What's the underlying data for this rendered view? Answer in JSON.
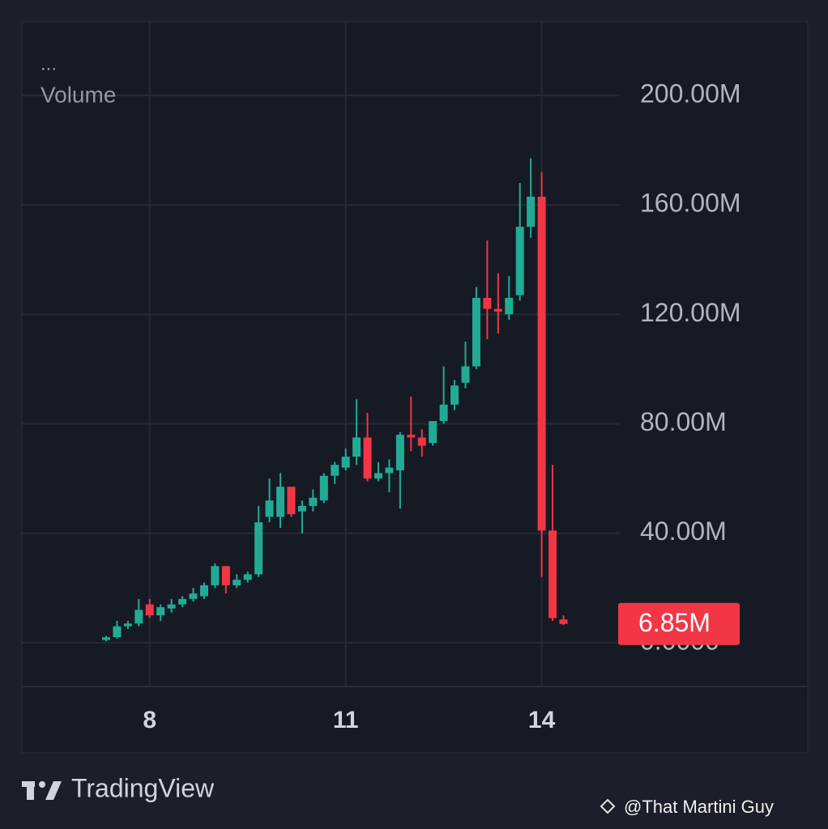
{
  "chart_data": {
    "type": "candlestick",
    "menu": "...",
    "indicator_label": "Volume",
    "brand": "TradingView",
    "watermark": "@That Martini Guy",
    "categories": [
      null,
      null,
      null,
      null,
      "8",
      null,
      null,
      null,
      null,
      null,
      null,
      null,
      null,
      null,
      null,
      null,
      null,
      null,
      null,
      null,
      null,
      null,
      "11",
      null,
      null,
      null,
      null,
      null,
      null,
      null,
      null,
      null,
      null,
      null,
      null,
      null,
      null,
      null,
      null,
      null,
      "14",
      null,
      null
    ],
    "series": [
      {
        "up_color": "#22ab94",
        "down_color": "#f23645",
        "open": [
          1,
          2,
          6,
          7,
          14,
          10,
          12.5,
          14,
          16,
          17,
          21,
          28,
          21,
          23,
          25,
          46,
          46,
          57,
          48,
          50,
          52,
          61,
          64,
          68,
          75,
          60,
          62,
          63,
          76,
          75,
          73,
          81,
          87,
          95,
          101,
          126,
          122,
          120,
          127,
          152,
          163,
          41,
          8.5
        ],
        "high": [
          2.5,
          8,
          8,
          16,
          16,
          14,
          16,
          17,
          20,
          22,
          29,
          28,
          25,
          26,
          50,
          60,
          62,
          57,
          52,
          56,
          62,
          66,
          71,
          89,
          84,
          66,
          67,
          77,
          90,
          78,
          81,
          101,
          96,
          110,
          130,
          147,
          135,
          134,
          168,
          177,
          172,
          65,
          10
        ],
        "low": [
          0.5,
          1.5,
          5,
          6,
          9,
          8,
          11,
          13,
          15,
          16,
          20,
          18,
          20,
          22,
          24,
          44,
          42,
          46,
          40,
          48,
          51,
          58,
          63,
          65,
          59,
          59,
          55,
          49,
          70,
          68,
          72,
          80,
          85,
          93,
          100,
          111,
          113,
          118,
          125,
          148,
          24,
          8,
          6.5
        ],
        "close": [
          2,
          6,
          7,
          12,
          10,
          13,
          14,
          16,
          18,
          21,
          28,
          21,
          23,
          25,
          44,
          52,
          57,
          47,
          50,
          53,
          61,
          65,
          68,
          75,
          60,
          62,
          64,
          76,
          75,
          72,
          81,
          87,
          94,
          101,
          126,
          122,
          121,
          126,
          152,
          163,
          41,
          9,
          6.85
        ]
      }
    ],
    "last_value_label": "6.85M",
    "ylim": [
      -16,
      226
    ],
    "yticks": [
      {
        "value": 0,
        "label": "0.0000"
      },
      {
        "value": 40,
        "label": "40.00M"
      },
      {
        "value": 80,
        "label": "80.00M"
      },
      {
        "value": 120,
        "label": "120.00M"
      },
      {
        "value": 160,
        "label": "160.00M"
      },
      {
        "value": 200,
        "label": "200.00M"
      }
    ],
    "grid": true
  }
}
